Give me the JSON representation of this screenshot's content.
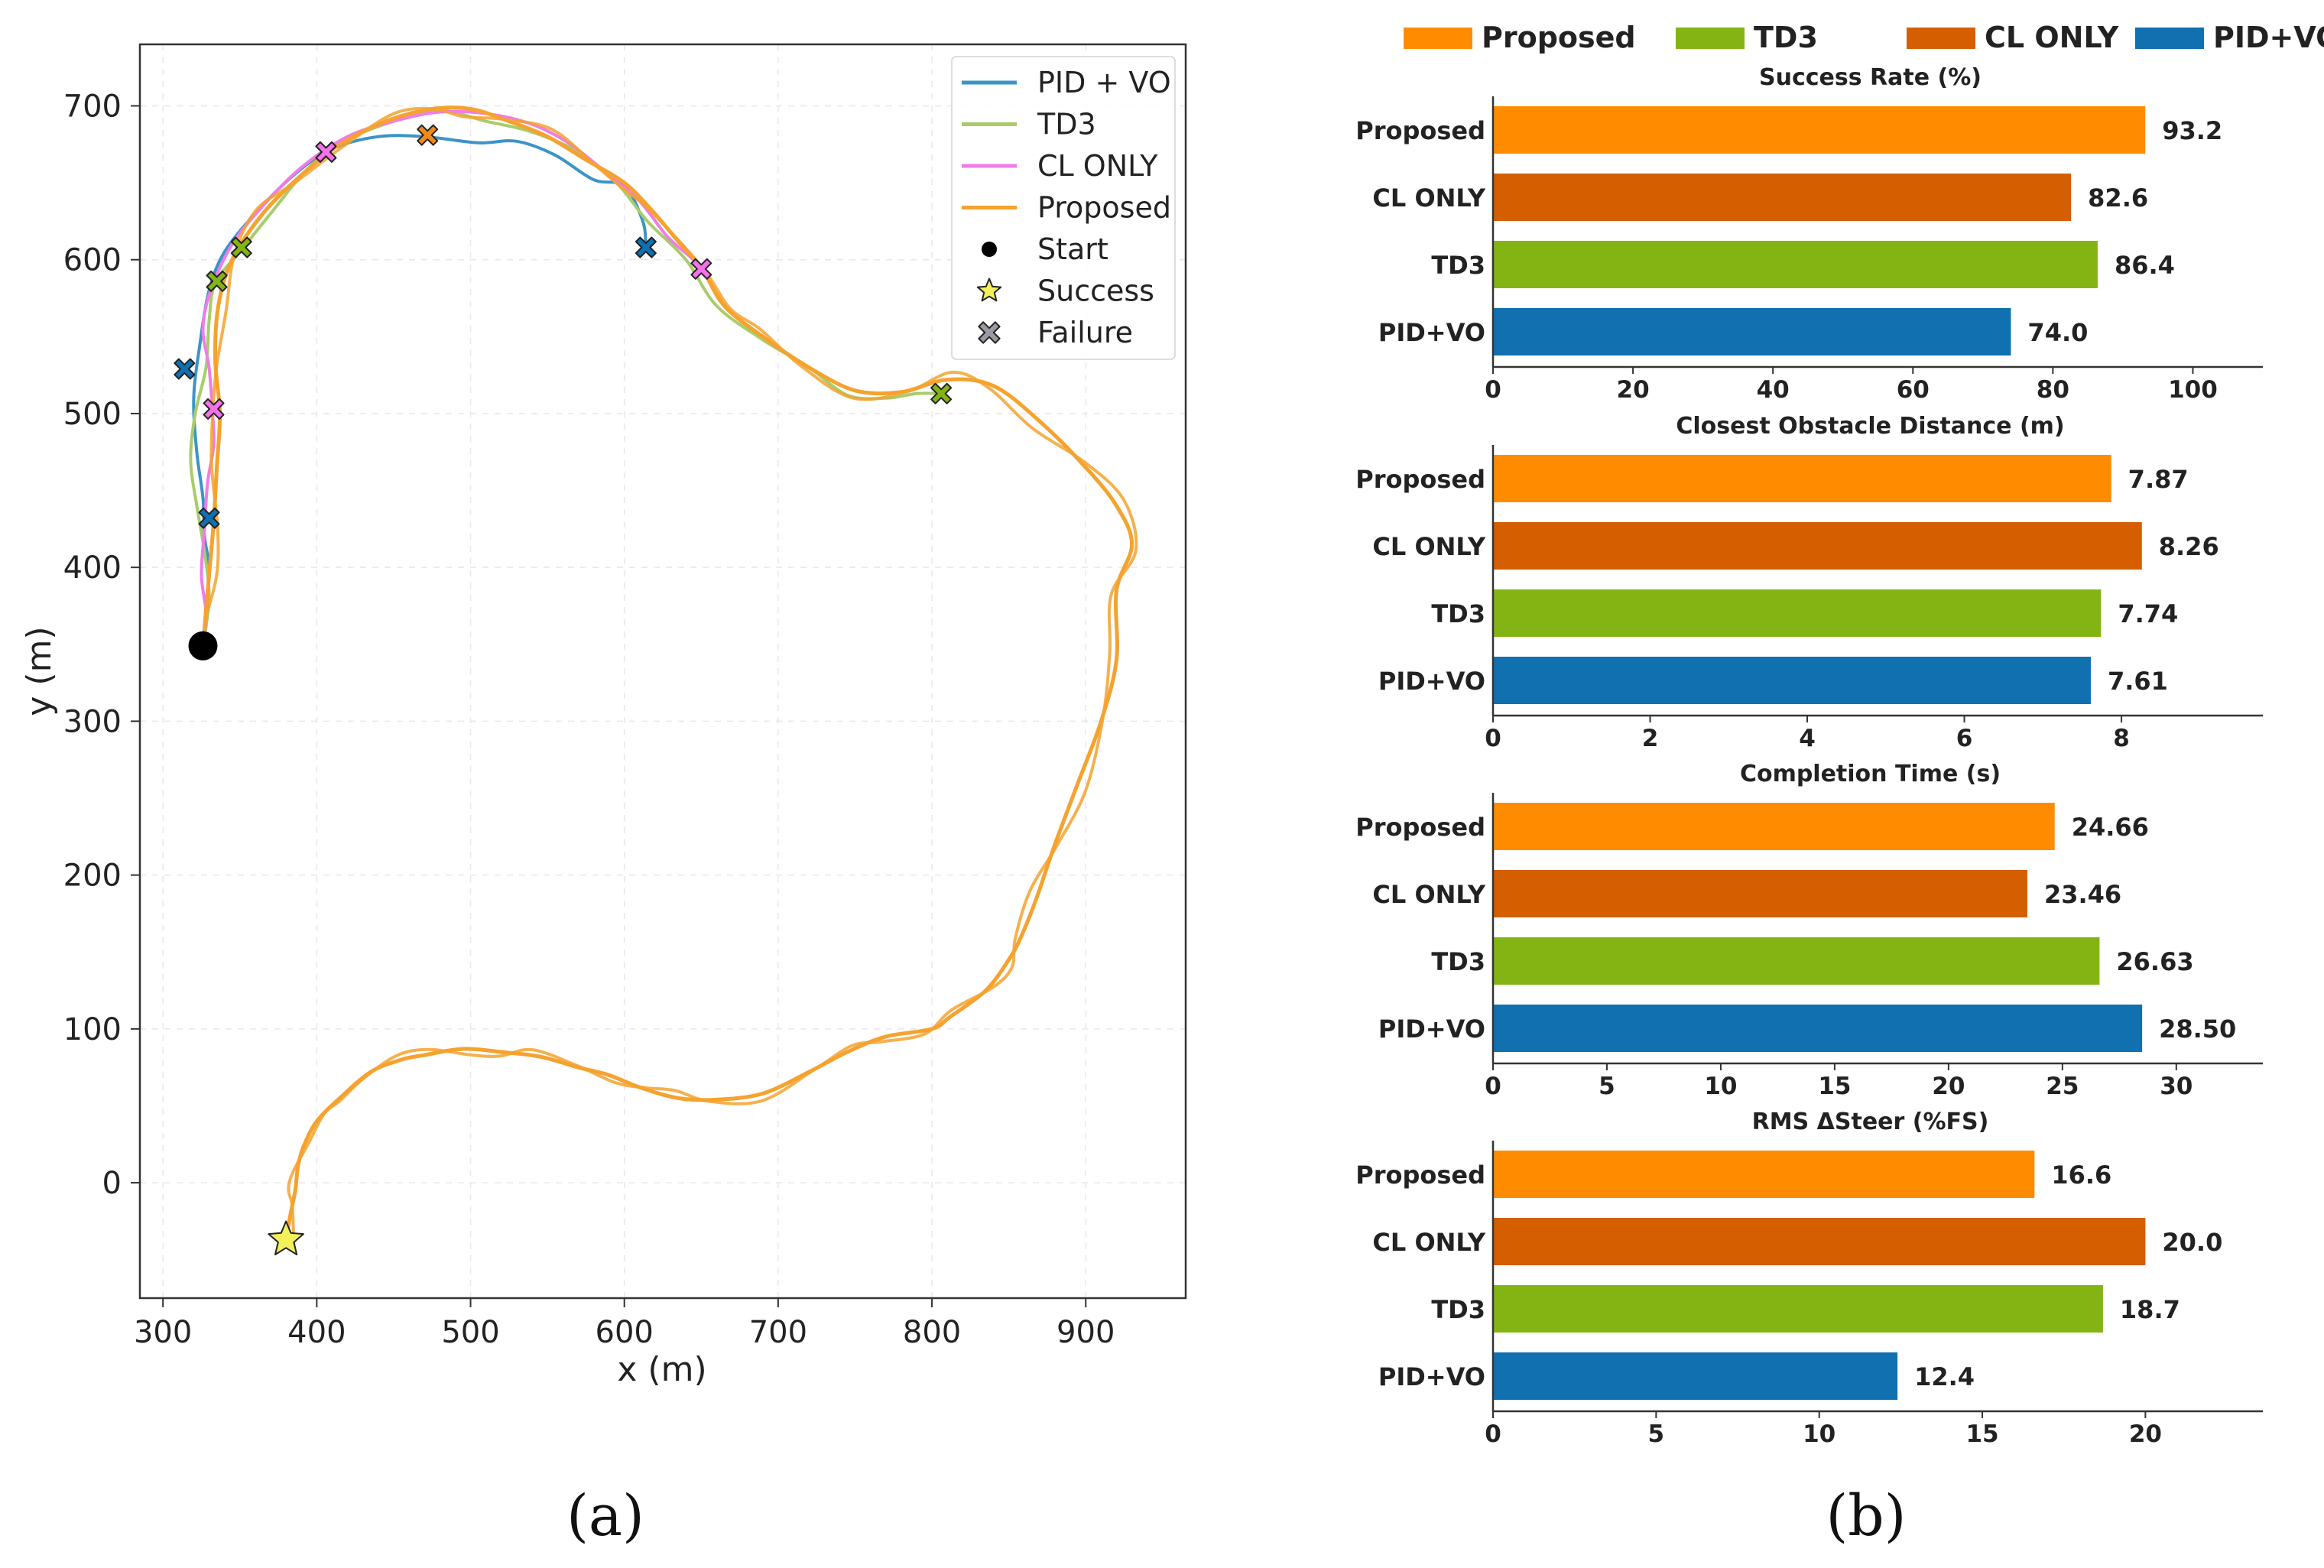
{
  "panel_labels": {
    "a": "(a)",
    "b": "(b)"
  },
  "colors": {
    "proposed": "#FF8C00",
    "cl_only": "#D45E00",
    "td3": "#84B414",
    "pid_vo": "#1070B0",
    "traj_pid_vo": "#3B94C6",
    "traj_td3": "#A8CC6C",
    "traj_cl_only": "#F07CE8",
    "traj_proposed": "#F5A22E",
    "start": "#000000",
    "success": "#F3F05A",
    "failure": "#9A9AA2"
  },
  "chart_data": [
    {
      "type": "line",
      "xlabel": "x (m)",
      "ylabel": "y (m)",
      "xlim": [
        285,
        965
      ],
      "ylim": [
        -75,
        740
      ],
      "xticks": [
        "300",
        "400",
        "500",
        "600",
        "700",
        "800",
        "900"
      ],
      "xtick_values": [
        300,
        400,
        500,
        600,
        700,
        800,
        900
      ],
      "yticks": [
        "0",
        "100",
        "200",
        "300",
        "400",
        "500",
        "600",
        "700"
      ],
      "ytick_values": [
        0,
        100,
        200,
        300,
        400,
        500,
        600,
        700
      ],
      "grid": true,
      "legend_position": "top-right",
      "legend": [
        {
          "label": "PID + VO",
          "kind": "line",
          "color": "#3B94C6"
        },
        {
          "label": "TD3",
          "kind": "line",
          "color": "#A8CC6C"
        },
        {
          "label": "CL ONLY",
          "kind": "line",
          "color": "#F07CE8"
        },
        {
          "label": "Proposed",
          "kind": "line",
          "color": "#F5A22E"
        },
        {
          "label": "Start",
          "kind": "dot",
          "color": "#000000"
        },
        {
          "label": "Success",
          "kind": "star",
          "color": "#F3F05A"
        },
        {
          "label": "Failure",
          "kind": "cross",
          "color": "#9A9AA2"
        }
      ],
      "start": [
        326,
        349
      ],
      "success": [
        380,
        -37
      ],
      "series": [
        {
          "name": "PID + VO",
          "color": "#3B94C6",
          "points": [
            [
              326,
              349
            ],
            [
              328,
              375
            ],
            [
              330,
              400
            ],
            [
              327,
              420
            ],
            [
              326,
              445
            ],
            [
              322,
              475
            ],
            [
              320,
              510
            ],
            [
              324,
              545
            ],
            [
              330,
              580
            ],
            [
              340,
              605
            ],
            [
              360,
              630
            ],
            [
              385,
              655
            ],
            [
              410,
              672
            ],
            [
              440,
              680
            ],
            [
              470,
              680
            ],
            [
              505,
              676
            ],
            [
              530,
              677
            ],
            [
              555,
              668
            ],
            [
              580,
              652
            ],
            [
              600,
              648
            ],
            [
              612,
              625
            ],
            [
              614,
              608
            ]
          ]
        },
        {
          "name": "TD3",
          "color": "#A8CC6C",
          "points": [
            [
              326,
              349
            ],
            [
              330,
              380
            ],
            [
              327,
              410
            ],
            [
              322,
              440
            ],
            [
              318,
              470
            ],
            [
              321,
              500
            ],
            [
              328,
              530
            ],
            [
              330,
              560
            ],
            [
              334,
              585
            ],
            [
              350,
              605
            ],
            [
              370,
              630
            ],
            [
              395,
              660
            ],
            [
              420,
              678
            ],
            [
              450,
              690
            ],
            [
              480,
              697
            ],
            [
              510,
              690
            ],
            [
              540,
              683
            ],
            [
              570,
              670
            ],
            [
              595,
              650
            ],
            [
              615,
              625
            ],
            [
              640,
              600
            ],
            [
              660,
              570
            ],
            [
              690,
              548
            ],
            [
              720,
              530
            ],
            [
              745,
              512
            ],
            [
              770,
              510
            ],
            [
              790,
              513
            ],
            [
              806,
              513
            ]
          ]
        },
        {
          "name": "CL ONLY",
          "color": "#F07CE8",
          "points": [
            [
              326,
              349
            ],
            [
              328,
              370
            ],
            [
              325,
              395
            ],
            [
              327,
              425
            ],
            [
              329,
              455
            ],
            [
              333,
              480
            ],
            [
              332,
              503
            ],
            [
              330,
              530
            ],
            [
              326,
              555
            ],
            [
              331,
              580
            ],
            [
              345,
              610
            ],
            [
              365,
              635
            ],
            [
              390,
              660
            ],
            [
              420,
              680
            ],
            [
              450,
              690
            ],
            [
              480,
              696
            ],
            [
              510,
              695
            ],
            [
              540,
              688
            ],
            [
              565,
              675
            ],
            [
              590,
              655
            ],
            [
              610,
              638
            ],
            [
              628,
              615
            ],
            [
              645,
              600
            ],
            [
              650,
              594
            ]
          ]
        },
        {
          "name": "Proposed",
          "color": "#F5A22E",
          "points": [
            [
              327,
              360
            ],
            [
              330,
              395
            ],
            [
              333,
              430
            ],
            [
              335,
              465
            ],
            [
              337,
              500
            ],
            [
              334,
              535
            ],
            [
              336,
              570
            ],
            [
              345,
              600
            ],
            [
              365,
              630
            ],
            [
              390,
              655
            ],
            [
              415,
              675
            ],
            [
              445,
              690
            ],
            [
              475,
              698
            ],
            [
              500,
              698
            ],
            [
              525,
              690
            ],
            [
              550,
              680
            ],
            [
              575,
              665
            ],
            [
              600,
              650
            ],
            [
              618,
              632
            ],
            [
              635,
              612
            ],
            [
              650,
              595
            ],
            [
              665,
              570
            ],
            [
              690,
              550
            ],
            [
              720,
              530
            ],
            [
              750,
              515
            ],
            [
              780,
              514
            ],
            [
              810,
              522
            ],
            [
              840,
              518
            ],
            [
              870,
              495
            ],
            [
              900,
              465
            ],
            [
              920,
              440
            ],
            [
              930,
              415
            ],
            [
              920,
              385
            ],
            [
              920,
              340
            ],
            [
              910,
              300
            ],
            [
              895,
              260
            ],
            [
              880,
              220
            ],
            [
              868,
              185
            ],
            [
              858,
              160
            ],
            [
              850,
              145
            ],
            [
              835,
              125
            ],
            [
              812,
              108
            ],
            [
              800,
              100
            ],
            [
              770,
              95
            ],
            [
              745,
              85
            ],
            [
              720,
              72
            ],
            [
              690,
              58
            ],
            [
              660,
              54
            ],
            [
              635,
              55
            ],
            [
              610,
              62
            ],
            [
              590,
              70
            ],
            [
              570,
              75
            ],
            [
              545,
              82
            ],
            [
              520,
              85
            ],
            [
              495,
              87
            ],
            [
              470,
              83
            ],
            [
              455,
              80
            ],
            [
              435,
              72
            ],
            [
              415,
              55
            ],
            [
              400,
              40
            ],
            [
              392,
              25
            ],
            [
              388,
              12
            ],
            [
              386,
              -5
            ],
            [
              383,
              -20
            ],
            [
              380,
              -37
            ]
          ]
        }
      ],
      "failures": [
        {
          "series": "PID + VO",
          "at": [
            314,
            529
          ],
          "color": "#1070B0"
        },
        {
          "series": "PID + VO",
          "at": [
            330,
            432
          ],
          "color": "#1070B0"
        },
        {
          "series": "PID + VO",
          "at": [
            614,
            608
          ],
          "color": "#1070B0"
        },
        {
          "series": "TD3",
          "at": [
            335,
            586
          ],
          "color": "#84B414"
        },
        {
          "series": "TD3",
          "at": [
            351,
            608
          ],
          "color": "#84B414"
        },
        {
          "series": "TD3",
          "at": [
            806,
            513
          ],
          "color": "#84B414"
        },
        {
          "series": "CL ONLY",
          "at": [
            406,
            670
          ],
          "color": "#F272E8"
        },
        {
          "series": "CL ONLY",
          "at": [
            650,
            594
          ],
          "color": "#F272E8"
        },
        {
          "series": "CL ONLY",
          "at": [
            333,
            503
          ],
          "color": "#F272E8"
        },
        {
          "series": "Proposed",
          "at": [
            472,
            681
          ],
          "color": "#F28A1A"
        }
      ]
    },
    {
      "type": "bar",
      "orientation": "horizontal",
      "title": "Success Rate (%)",
      "categories": [
        "Proposed",
        "CL ONLY",
        "TD3",
        "PID+VO"
      ],
      "values": [
        93.2,
        82.6,
        86.4,
        74.0
      ],
      "labels": [
        "93.2",
        "82.6",
        "86.4",
        "74.0"
      ],
      "xlim": [
        0,
        110
      ],
      "xticks": [
        "0",
        "20",
        "40",
        "60",
        "80",
        "100"
      ],
      "xtick_values": [
        0,
        20,
        40,
        60,
        80,
        100
      ]
    },
    {
      "type": "bar",
      "orientation": "horizontal",
      "title": "Closest Obstacle Distance (m)",
      "categories": [
        "Proposed",
        "CL ONLY",
        "TD3",
        "PID+VO"
      ],
      "values": [
        7.87,
        8.26,
        7.74,
        7.61
      ],
      "labels": [
        "7.87",
        "8.26",
        "7.74",
        "7.61"
      ],
      "xlim": [
        0,
        9.8
      ],
      "xticks": [
        "0",
        "2",
        "4",
        "6",
        "8"
      ],
      "xtick_values": [
        0,
        2,
        4,
        6,
        8
      ]
    },
    {
      "type": "bar",
      "orientation": "horizontal",
      "title": "Completion Time (s)",
      "categories": [
        "Proposed",
        "CL ONLY",
        "TD3",
        "PID+VO"
      ],
      "values": [
        24.66,
        23.46,
        26.63,
        28.5
      ],
      "labels": [
        "24.66",
        "23.46",
        "26.63",
        "28.50"
      ],
      "xlim": [
        0,
        33.8
      ],
      "xticks": [
        "0",
        "5",
        "10",
        "15",
        "20",
        "25",
        "30"
      ],
      "xtick_values": [
        0,
        5,
        10,
        15,
        20,
        25,
        30
      ]
    },
    {
      "type": "bar",
      "orientation": "horizontal",
      "title": "RMS ΔSteer (%FS)",
      "categories": [
        "Proposed",
        "CL ONLY",
        "TD3",
        "PID+VO"
      ],
      "values": [
        16.6,
        20.0,
        18.7,
        12.4
      ],
      "labels": [
        "16.6",
        "20.0",
        "18.7",
        "12.4"
      ],
      "xlim": [
        0,
        23.6
      ],
      "xticks": [
        "0",
        "5",
        "10",
        "15",
        "20"
      ],
      "xtick_values": [
        0,
        5,
        10,
        15,
        20
      ]
    }
  ],
  "bar_legend": [
    {
      "label": "Proposed",
      "color": "#FF8C00"
    },
    {
      "label": "TD3",
      "color": "#84B414"
    },
    {
      "label": "CL ONLY",
      "color": "#D45E00"
    },
    {
      "label": "PID+VO",
      "color": "#1070B0"
    }
  ]
}
